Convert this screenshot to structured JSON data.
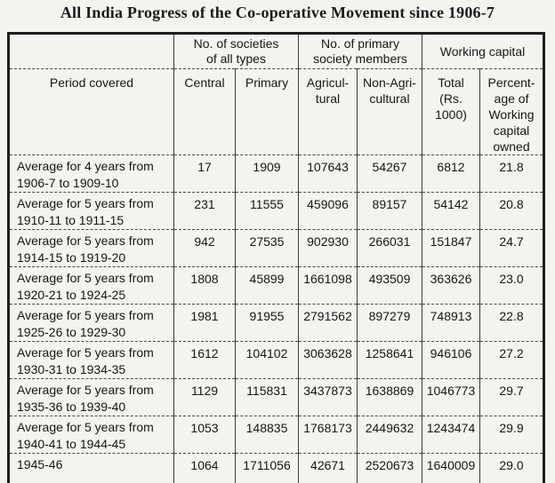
{
  "title": "All India Progress of the Co-operative Movement since 1906-7",
  "table": {
    "group_headers": {
      "societies": "No. of societies\nof all types",
      "members": "No. of primary\nsociety members",
      "working_capital": "Working capital"
    },
    "column_headers": {
      "period": "Period covered",
      "central": "Central",
      "primary": "Primary",
      "agricultural": "Agricul-\ntural",
      "non_agricultural": "Non-Agri-\ncultural",
      "total": "Total\n(Rs.\n1000)",
      "percentage": "Percent-\nage of\nWorking\ncapital\nowned"
    },
    "rows": [
      {
        "period": "Average for 4 years from\n1906-7 to  1909-10",
        "central": "17",
        "primary": "1909",
        "agricultural": "107643",
        "non_agricultural": "54267",
        "total": "6812",
        "percentage": "21.8"
      },
      {
        "period": "Average for 5 years from\n1910-11 to  1911-15",
        "central": "231",
        "primary": "11555",
        "agricultural": "459096",
        "non_agricultural": "89157",
        "total": "54142",
        "percentage": "20.8"
      },
      {
        "period": "Average for 5 years from\n1914-15 to  1919-20",
        "central": "942",
        "primary": "27535",
        "agricultural": "902930",
        "non_agricultural": "266031",
        "total": "151847",
        "percentage": "24.7"
      },
      {
        "period": "Average for 5 years from\n1920-21 to  1924-25",
        "central": "1808",
        "primary": "45899",
        "agricultural": "1661098",
        "non_agricultural": "493509",
        "total": "363626",
        "percentage": "23.0"
      },
      {
        "period": "Average for 5 years from\n1925-26 to  1929-30",
        "central": "1981",
        "primary": "91955",
        "agricultural": "2791562",
        "non_agricultural": "897279",
        "total": "748913",
        "percentage": "22.8"
      },
      {
        "period": "Average for 5 years from\n1930-31 to  1934-35",
        "central": "1612",
        "primary": "104102",
        "agricultural": "3063628",
        "non_agricultural": "1258641",
        "total": "946106",
        "percentage": "27.2"
      },
      {
        "period": "Average for 5 years from\n1935-36 to  1939-40",
        "central": "1129",
        "primary": "115831",
        "agricultural": "3437873",
        "non_agricultural": "1638869",
        "total": "1046773",
        "percentage": "29.7"
      },
      {
        "period": "Average for 5 years from\n1940-41 to  1944-45",
        "central": "1053",
        "primary": "148835",
        "agricultural": "1768173",
        "non_agricultural": "2449632",
        "total": "1243474",
        "percentage": "29.9"
      },
      {
        "period": "1945-46",
        "central": "1064",
        "primary": "1711056",
        "agricultural": "42671",
        "non_agricultural": "2520673",
        "total": "1640009",
        "percentage": "29.0"
      }
    ]
  },
  "colors": {
    "background": "#f3f3ef",
    "text": "#161616",
    "border": "#1d1d1d"
  }
}
